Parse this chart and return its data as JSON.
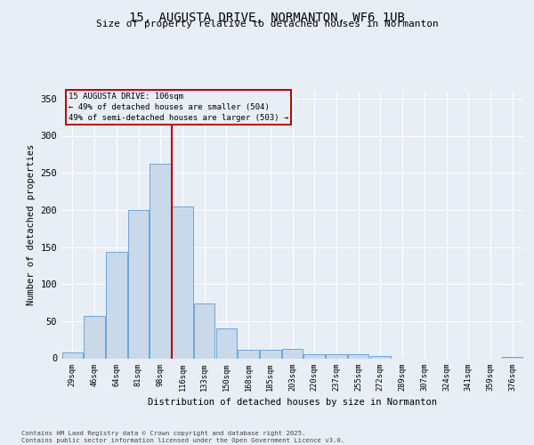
{
  "title_line1": "15, AUGUSTA DRIVE, NORMANTON, WF6 1UB",
  "title_line2": "Size of property relative to detached houses in Normanton",
  "xlabel": "Distribution of detached houses by size in Normanton",
  "ylabel": "Number of detached properties",
  "bar_labels": [
    "29sqm",
    "46sqm",
    "64sqm",
    "81sqm",
    "98sqm",
    "116sqm",
    "133sqm",
    "150sqm",
    "168sqm",
    "185sqm",
    "203sqm",
    "220sqm",
    "237sqm",
    "255sqm",
    "272sqm",
    "289sqm",
    "307sqm",
    "324sqm",
    "341sqm",
    "359sqm",
    "376sqm"
  ],
  "bar_values": [
    8,
    57,
    144,
    200,
    262,
    205,
    74,
    40,
    11,
    12,
    13,
    5,
    6,
    6,
    3,
    0,
    0,
    0,
    0,
    0,
    2
  ],
  "bar_color": "#c9d9ea",
  "bar_edgecolor": "#5b9bd5",
  "ylim": [
    0,
    360
  ],
  "yticks": [
    0,
    50,
    100,
    150,
    200,
    250,
    300,
    350
  ],
  "vline_x": 4.5,
  "vline_color": "#bb0000",
  "annotation_title": "15 AUGUSTA DRIVE: 106sqm",
  "annotation_line1": "← 49% of detached houses are smaller (504)",
  "annotation_line2": "49% of semi-detached houses are larger (503) →",
  "annotation_box_edgecolor": "#bb0000",
  "footer_line1": "Contains HM Land Registry data © Crown copyright and database right 2025.",
  "footer_line2": "Contains public sector information licensed under the Open Government Licence v3.0.",
  "bg_color": "#e8eef5",
  "plot_bg_color": "#e8eef5"
}
